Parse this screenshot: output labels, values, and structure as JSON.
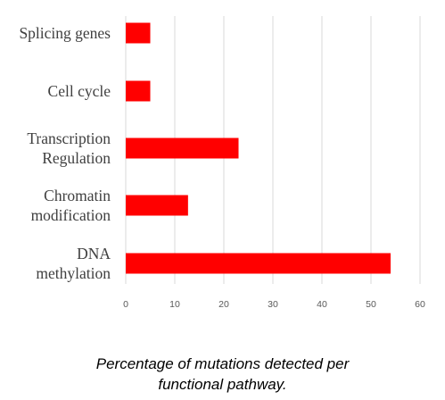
{
  "chart_data": {
    "type": "bar",
    "orientation": "horizontal",
    "categories": [
      [
        "Splicing genes"
      ],
      [
        "Cell cycle"
      ],
      [
        "Transcription",
        "Regulation"
      ],
      [
        "Chromatin",
        "modification"
      ],
      [
        "DNA",
        "methylation"
      ]
    ],
    "values": [
      5,
      5,
      23,
      12.7,
      54
    ],
    "xlim": [
      0,
      60
    ],
    "xticks": [
      0,
      10,
      20,
      30,
      40,
      50,
      60
    ],
    "grid": "vertical",
    "legend": "none",
    "bar_color": "#ff0000"
  },
  "caption": {
    "line1": "Percentage of mutations detected per",
    "line2": "functional pathway."
  }
}
